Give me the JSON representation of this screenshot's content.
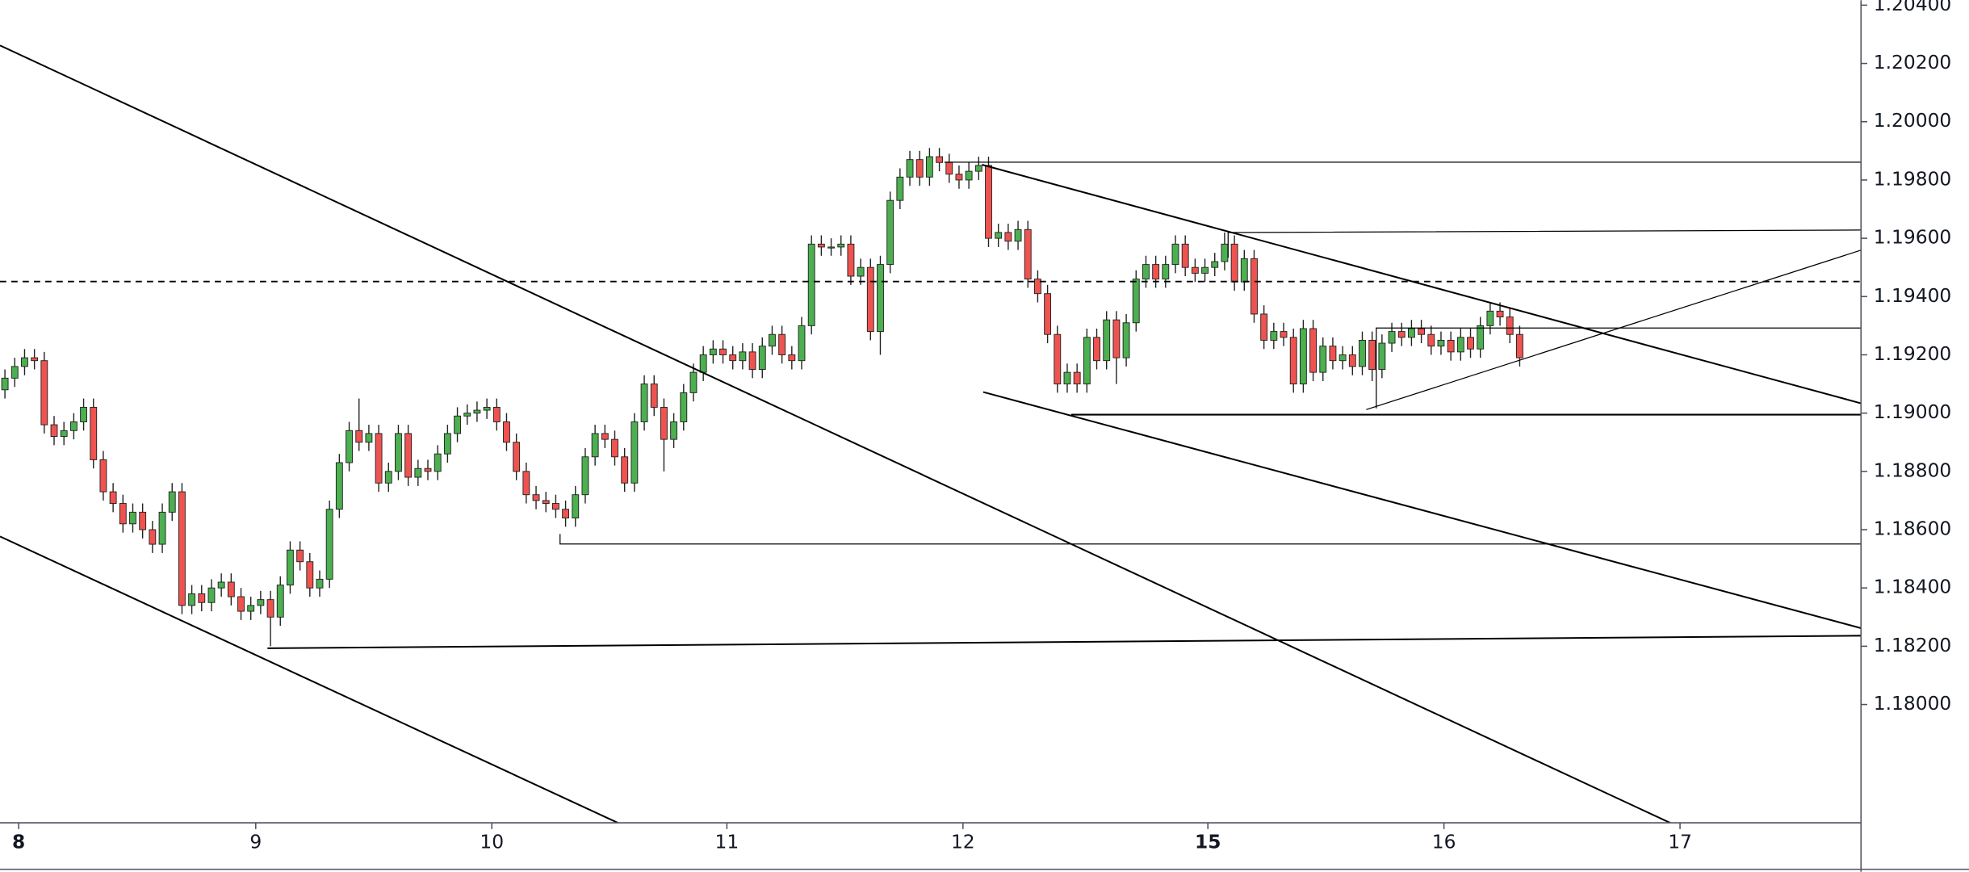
{
  "chart_data": {
    "type": "candlestick",
    "up_color": "#4caf50",
    "down_color": "#ef5350",
    "xlim": [
      -0.5,
      188.7
    ],
    "xticks": [
      {
        "value": 1.4,
        "label": "8"
      },
      {
        "value": 25.5,
        "label": "9"
      },
      {
        "value": 49.5,
        "label": "10"
      },
      {
        "value": 73.4,
        "label": "11"
      },
      {
        "value": 97.4,
        "label": "12"
      },
      {
        "value": 122.3,
        "label": "15"
      },
      {
        "value": 146.3,
        "label": "16"
      },
      {
        "value": 170.3,
        "label": "17"
      }
    ],
    "ylim": [
      1.17594,
      1.20417
    ],
    "yticks": [
      {
        "value": 1.18,
        "label": "1.18000"
      },
      {
        "value": 1.182,
        "label": "1.18200"
      },
      {
        "value": 1.184,
        "label": "1.18400"
      },
      {
        "value": 1.186,
        "label": "1.18600"
      },
      {
        "value": 1.188,
        "label": "1.18800"
      },
      {
        "value": 1.19,
        "label": "1.19000"
      },
      {
        "value": 1.192,
        "label": "1.19200"
      },
      {
        "value": 1.194,
        "label": "1.19400"
      },
      {
        "value": 1.196,
        "label": "1.19600"
      },
      {
        "value": 1.198,
        "label": "1.19800"
      },
      {
        "value": 1.2,
        "label": "1.20000"
      },
      {
        "value": 1.202,
        "label": "1.20200"
      },
      {
        "value": 1.204,
        "label": "1.20400"
      }
    ],
    "open": [
      1.1908,
      1.1912,
      1.1916,
      1.1919,
      1.1918,
      1.1896,
      1.1892,
      1.1894,
      1.1897,
      1.1902,
      1.1884,
      1.1873,
      1.1869,
      1.1862,
      1.1866,
      1.186,
      1.1855,
      1.1866,
      1.1873,
      1.1834,
      1.1838,
      1.1835,
      1.184,
      1.1842,
      1.1837,
      1.1832,
      1.1834,
      1.1836,
      1.183,
      1.1841,
      1.1853,
      1.1849,
      1.184,
      1.1843,
      1.1867,
      1.1883,
      1.1894,
      1.189,
      1.1893,
      1.1876,
      1.188,
      1.1893,
      1.1878,
      1.1881,
      1.188,
      1.1886,
      1.1893,
      1.1899,
      1.19,
      1.1901,
      1.1902,
      1.1897,
      1.189,
      1.188,
      1.1872,
      1.187,
      1.1869,
      1.1867,
      1.1864,
      1.1872,
      1.1885,
      1.1893,
      1.1891,
      1.1885,
      1.1876,
      1.1897,
      1.191,
      1.1902,
      1.1891,
      1.1897,
      1.1907,
      1.1914,
      1.192,
      1.1922,
      1.192,
      1.1918,
      1.1921,
      1.1915,
      1.1923,
      1.1927,
      1.192,
      1.1918,
      1.193,
      1.1958,
      1.1957,
      1.1957,
      1.1958,
      1.1947,
      1.195,
      1.1928,
      1.1951,
      1.1973,
      1.1981,
      1.1987,
      1.1981,
      1.1988,
      1.1986,
      1.1982,
      1.198,
      1.1983,
      1.1985,
      1.196,
      1.1962,
      1.1959,
      1.1963,
      1.1946,
      1.1941,
      1.1927,
      1.191,
      1.1914,
      1.191,
      1.1926,
      1.1918,
      1.1932,
      1.1919,
      1.1931,
      1.1946,
      1.1951,
      1.1946,
      1.1951,
      1.1958,
      1.195,
      1.1948,
      1.195,
      1.1952,
      1.1958,
      1.1945,
      1.1953,
      1.1934,
      1.1925,
      1.1928,
      1.1926,
      1.191,
      1.1929,
      1.1914,
      1.1923,
      1.1918,
      1.192,
      1.1916,
      1.1925,
      1.1915,
      1.1924,
      1.1928,
      1.1926,
      1.1929,
      1.1927,
      1.1923,
      1.1925,
      1.1921,
      1.1926,
      1.1922,
      1.193,
      1.1935,
      1.1933,
      1.1927
    ],
    "high": [
      1.1915,
      1.1919,
      1.1922,
      1.1922,
      1.1921,
      1.1899,
      1.1897,
      1.19,
      1.1905,
      1.1905,
      1.1887,
      1.1876,
      1.1872,
      1.1869,
      1.1869,
      1.1863,
      1.1869,
      1.1876,
      1.1876,
      1.1841,
      1.1841,
      1.1843,
      1.1845,
      1.1845,
      1.184,
      1.1837,
      1.1839,
      1.1839,
      1.1844,
      1.1856,
      1.1856,
      1.1852,
      1.1846,
      1.187,
      1.1886,
      1.1897,
      1.1905,
      1.1896,
      1.1896,
      1.1883,
      1.1896,
      1.1896,
      1.1884,
      1.1884,
      1.1889,
      1.1896,
      1.1902,
      1.1903,
      1.1904,
      1.1905,
      1.1905,
      1.19,
      1.1893,
      1.1883,
      1.1875,
      1.1873,
      1.1872,
      1.187,
      1.1875,
      1.1888,
      1.1896,
      1.1896,
      1.1894,
      1.1888,
      1.19,
      1.1913,
      1.1913,
      1.1905,
      1.19,
      1.191,
      1.1917,
      1.1923,
      1.1925,
      1.1925,
      1.1923,
      1.1924,
      1.1924,
      1.1926,
      1.193,
      1.193,
      1.1923,
      1.1933,
      1.1961,
      1.1961,
      1.196,
      1.1961,
      1.1961,
      1.1953,
      1.1953,
      1.1954,
      1.1976,
      1.1984,
      1.199,
      1.199,
      1.1991,
      1.1991,
      1.1989,
      1.1985,
      1.1986,
      1.1988,
      1.1988,
      1.1965,
      1.1965,
      1.1966,
      1.1966,
      1.1949,
      1.1944,
      1.193,
      1.1917,
      1.1917,
      1.1929,
      1.1929,
      1.1935,
      1.1935,
      1.1934,
      1.1949,
      1.1954,
      1.1954,
      1.1954,
      1.1961,
      1.1961,
      1.1953,
      1.1953,
      1.1955,
      1.1962,
      1.1961,
      1.1956,
      1.1956,
      1.1937,
      1.1931,
      1.1931,
      1.1929,
      1.1932,
      1.1932,
      1.1926,
      1.1926,
      1.1923,
      1.1923,
      1.1928,
      1.1928,
      1.1927,
      1.1931,
      1.1931,
      1.1932,
      1.1932,
      1.193,
      1.1928,
      1.1928,
      1.1929,
      1.1929,
      1.1933,
      1.1938,
      1.1938,
      1.1936,
      1.193
    ],
    "low": [
      1.1905,
      1.1909,
      1.1913,
      1.1915,
      1.1893,
      1.1889,
      1.1889,
      1.1891,
      1.1894,
      1.1881,
      1.187,
      1.1866,
      1.1859,
      1.1859,
      1.1857,
      1.1852,
      1.1852,
      1.1863,
      1.1831,
      1.1831,
      1.1832,
      1.1832,
      1.1837,
      1.1834,
      1.1829,
      1.1829,
      1.1831,
      1.182,
      1.1827,
      1.1838,
      1.1846,
      1.1837,
      1.1837,
      1.184,
      1.1864,
      1.188,
      1.1887,
      1.1887,
      1.1873,
      1.1873,
      1.1877,
      1.1875,
      1.1875,
      1.1877,
      1.1877,
      1.1883,
      1.189,
      1.1896,
      1.1897,
      1.1898,
      1.1894,
      1.1887,
      1.1877,
      1.1869,
      1.1867,
      1.1866,
      1.1864,
      1.1861,
      1.1861,
      1.1869,
      1.1882,
      1.1888,
      1.1882,
      1.1873,
      1.1873,
      1.1894,
      1.1899,
      1.188,
      1.1888,
      1.1894,
      1.1904,
      1.1911,
      1.1917,
      1.1917,
      1.1915,
      1.1915,
      1.1912,
      1.1912,
      1.192,
      1.1917,
      1.1915,
      1.1915,
      1.1927,
      1.1954,
      1.1954,
      1.1954,
      1.1944,
      1.1944,
      1.1925,
      1.192,
      1.1948,
      1.197,
      1.1978,
      1.1978,
      1.1978,
      1.1983,
      1.1979,
      1.1977,
      1.1977,
      1.198,
      1.1957,
      1.1957,
      1.1956,
      1.1956,
      1.1943,
      1.1938,
      1.1924,
      1.1907,
      1.1907,
      1.1907,
      1.1907,
      1.1915,
      1.1915,
      1.191,
      1.1916,
      1.1928,
      1.1943,
      1.1943,
      1.1943,
      1.1948,
      1.1947,
      1.1945,
      1.1945,
      1.1947,
      1.1949,
      1.1942,
      1.1942,
      1.1931,
      1.1922,
      1.1922,
      1.1923,
      1.1907,
      1.1907,
      1.1911,
      1.1911,
      1.1915,
      1.1915,
      1.1913,
      1.1913,
      1.1911,
      1.1912,
      1.1921,
      1.1923,
      1.1923,
      1.1924,
      1.192,
      1.192,
      1.1918,
      1.1918,
      1.1919,
      1.1919,
      1.1927,
      1.193,
      1.1924,
      1.1916
    ],
    "close": [
      1.1912,
      1.1916,
      1.1919,
      1.1918,
      1.1896,
      1.1892,
      1.1894,
      1.1897,
      1.1902,
      1.1884,
      1.1873,
      1.1869,
      1.1862,
      1.1866,
      1.186,
      1.1855,
      1.1866,
      1.1873,
      1.1834,
      1.1838,
      1.1835,
      1.184,
      1.1842,
      1.1837,
      1.1832,
      1.1834,
      1.1836,
      1.183,
      1.1841,
      1.1853,
      1.1849,
      1.184,
      1.1843,
      1.1867,
      1.1883,
      1.1894,
      1.189,
      1.1893,
      1.1876,
      1.188,
      1.1893,
      1.1878,
      1.1881,
      1.188,
      1.1886,
      1.1893,
      1.1899,
      1.19,
      1.1901,
      1.1902,
      1.1897,
      1.189,
      1.188,
      1.1872,
      1.187,
      1.1869,
      1.1867,
      1.1864,
      1.1872,
      1.1885,
      1.1893,
      1.1891,
      1.1885,
      1.1876,
      1.1897,
      1.191,
      1.1902,
      1.1891,
      1.1897,
      1.1907,
      1.1914,
      1.192,
      1.1922,
      1.192,
      1.1918,
      1.1921,
      1.1915,
      1.1923,
      1.1927,
      1.192,
      1.1918,
      1.193,
      1.1958,
      1.1957,
      1.1957,
      1.1958,
      1.1947,
      1.195,
      1.1928,
      1.1951,
      1.1973,
      1.1981,
      1.1987,
      1.1981,
      1.1988,
      1.1986,
      1.1982,
      1.198,
      1.1983,
      1.1985,
      1.196,
      1.1962,
      1.1959,
      1.1963,
      1.1946,
      1.1941,
      1.1927,
      1.191,
      1.1914,
      1.191,
      1.1926,
      1.1918,
      1.1932,
      1.1919,
      1.1931,
      1.1946,
      1.1951,
      1.1946,
      1.1951,
      1.1958,
      1.195,
      1.1948,
      1.195,
      1.1952,
      1.1958,
      1.1945,
      1.1953,
      1.1934,
      1.1925,
      1.1928,
      1.1926,
      1.191,
      1.1929,
      1.1914,
      1.1923,
      1.1918,
      1.192,
      1.1916,
      1.1925,
      1.1915,
      1.1924,
      1.1928,
      1.1926,
      1.1929,
      1.1927,
      1.1923,
      1.1925,
      1.1921,
      1.1926,
      1.1922,
      1.193,
      1.1935,
      1.1933,
      1.1927,
      1.1919
    ]
  }
}
